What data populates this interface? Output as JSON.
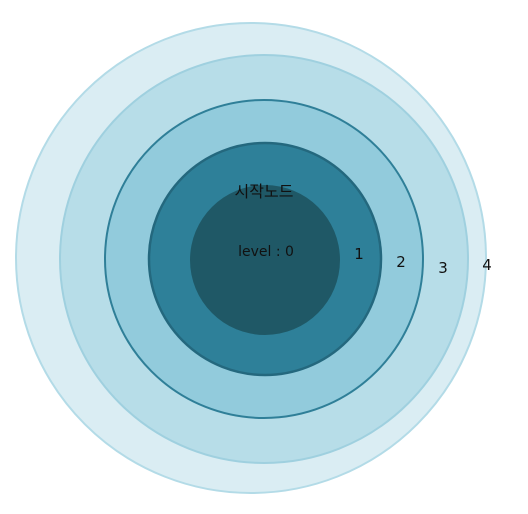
{
  "diagram": {
    "start_node_label": "시작노드",
    "center_level_label": "level : 0",
    "rings": [
      {
        "label": "1",
        "fill": "#2e8099",
        "stroke": "#24687e"
      },
      {
        "label": "2",
        "fill": "#92cbdc",
        "stroke": "#2f7f98"
      },
      {
        "label": "3",
        "fill": "#b7dde8",
        "stroke": "#9fd0df"
      },
      {
        "label": "4",
        "fill": "#daedf3",
        "stroke": "#b3dbe7"
      }
    ],
    "center_fill": "#1f5866"
  }
}
